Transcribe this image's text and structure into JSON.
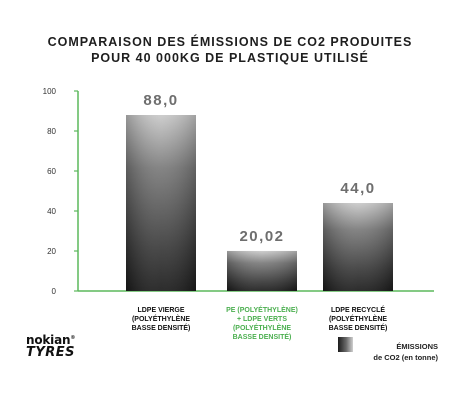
{
  "chart_data": {
    "type": "bar",
    "title_lines": [
      "COMPARAISON DES ÉMISSIONS DE CO2 PRODUITES",
      "POUR 40 000KG DE PLASTIQUE UTILISÉ"
    ],
    "categories": [
      {
        "lines": [
          "LDPE VIERGE",
          "(POLYÉTHYLÈNE",
          "BASSE DENSITÉ)"
        ],
        "color": "#111111"
      },
      {
        "lines": [
          "PE (POLYÉTHYLÈNE)",
          "+ LDPE VERTS",
          "(POLYÉTHYLÈNE",
          "BASSE DENSITÉ)"
        ],
        "color": "#4caf50"
      },
      {
        "lines": [
          "LDPE RECYCLÉ",
          "(POLYÉTHYLÈNE",
          "BASSE DENSITÉ)"
        ],
        "color": "#111111"
      }
    ],
    "series": [
      {
        "name_lines": [
          "ÉMISSIONS",
          "de CO2 (en tonne)"
        ],
        "values": [
          88.0,
          20.02,
          44.0
        ],
        "value_labels": [
          "88,0",
          "20,02",
          "44,0"
        ]
      }
    ],
    "yticks": [
      0,
      20,
      40,
      60,
      80,
      100
    ],
    "ylim": [
      0,
      100
    ],
    "axis_color": "#5cb85c",
    "grid": false,
    "legend_position": "bottom-right"
  },
  "brand": {
    "line1": "nokian",
    "line2": "TYRES",
    "mark": "®"
  }
}
